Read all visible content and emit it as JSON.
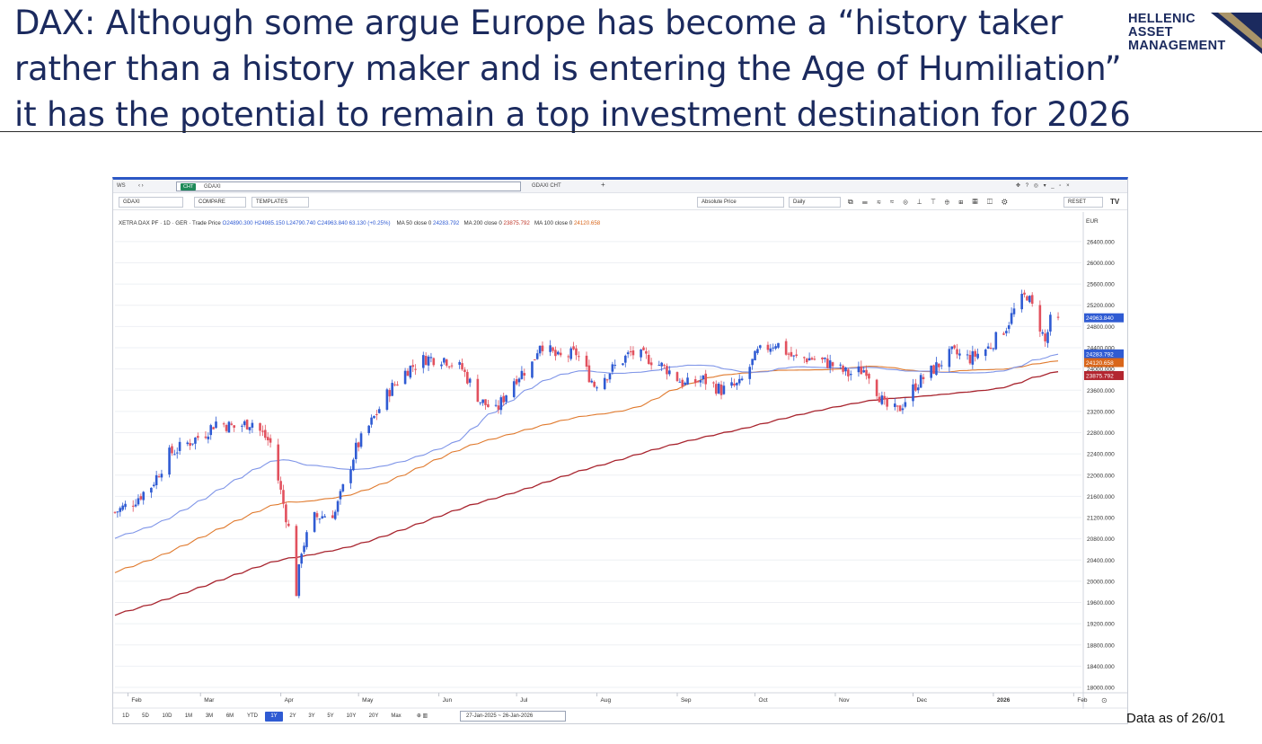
{
  "header": {
    "line1": "DAX: Although some argue Europe has become a “history taker",
    "line2": "rather than a history maker and is entering the Age of Humiliation”",
    "line3": "it has the potential to remain a top investment destination for 2026"
  },
  "logo": {
    "line1": "HELLENIC",
    "line2": "ASSET",
    "line3": "MANAGEMENT"
  },
  "terminal": {
    "tab_ws": "WS",
    "tab_nav": "‹ ›",
    "cmd_chip": "CHT",
    "cmd_text": "GDAXI",
    "tab_name": "GDAXI CHT",
    "tab_add": "+",
    "window_icons": "✥ ? ◎ ▾  _ ▫ ×",
    "ticker_input": "GDAXI",
    "compare_label": "COMPARE",
    "templates_label": "TEMPLATES",
    "price_mode": "Absolute Price",
    "periodicity": "Daily",
    "reset_label": "RESET",
    "tv_logo": "TV",
    "legend": {
      "title": "XETRA DAX PF · 1D · GER · Trade Price",
      "ohlc": "O24890.300 H24985.150 L24790.740 C24963.840 63.130 (+0.25%)",
      "ma50_label": "MA 50 close 0",
      "ma50_value": "24283.792",
      "ma200_label": "MA 200 close 0",
      "ma200_value": "23875.792",
      "ma100_label": "MA 100 close 0",
      "ma100_value": "24120.658"
    },
    "ranges": [
      "1D",
      "5D",
      "10D",
      "1M",
      "3M",
      "6M",
      "YTD",
      "1Y",
      "2Y",
      "3Y",
      "5Y",
      "10Y",
      "20Y",
      "Max"
    ],
    "active_range": "1Y",
    "date_range": "27-Jan-2025 ~ 26-Jan-2026"
  },
  "chart_data": {
    "type": "candlestick",
    "currency": "EUR",
    "y_axis_ticks": [
      18000,
      18400,
      18800,
      19200,
      19600,
      20000,
      20400,
      20800,
      21200,
      21600,
      22000,
      22400,
      22800,
      23200,
      23600,
      24000,
      24400,
      24800,
      25200,
      25600,
      26000,
      26400
    ],
    "ylim": [
      17950,
      26550
    ],
    "x_axis_labels": [
      "Feb",
      "Mar",
      "Apr",
      "May",
      "Jun",
      "Jul",
      "Aug",
      "Sep",
      "Oct",
      "Nov",
      "Dec",
      "2026",
      "Feb"
    ],
    "x_range": [
      "2025-01-27",
      "2026-02-04"
    ],
    "last_price_labels": [
      {
        "name": "Close",
        "value": 24963.84,
        "color": "#2f5bd3"
      },
      {
        "name": "MA 50",
        "value": 24283.792,
        "color": "#2f5bd3"
      },
      {
        "name": "MA 100",
        "value": 24120.658,
        "color": "#d9661a"
      },
      {
        "name": "MA 200",
        "value": 23875.792,
        "color": "#b32630"
      }
    ],
    "colors": {
      "up": "#2f5bd3",
      "down": "#e2515e",
      "ma50": "#7f95e8",
      "ma100": "#e07a2e",
      "ma200": "#a8242e",
      "grid": "#eef0f4"
    },
    "price_path": [
      [
        "2025-01-27",
        21300
      ],
      [
        "2025-02-03",
        21500
      ],
      [
        "2025-02-10",
        21800
      ],
      [
        "2025-02-17",
        22400
      ],
      [
        "2025-02-24",
        22600
      ],
      [
        "2025-03-03",
        22800
      ],
      [
        "2025-03-07",
        23000
      ],
      [
        "2025-03-14",
        22900
      ],
      [
        "2025-03-21",
        23000
      ],
      [
        "2025-03-28",
        22600
      ],
      [
        "2025-04-04",
        21000
      ],
      [
        "2025-04-07",
        19800
      ],
      [
        "2025-04-09",
        20600
      ],
      [
        "2025-04-14",
        21200
      ],
      [
        "2025-04-22",
        21300
      ],
      [
        "2025-04-30",
        22500
      ],
      [
        "2025-05-06",
        23000
      ],
      [
        "2025-05-13",
        23600
      ],
      [
        "2025-05-20",
        24000
      ],
      [
        "2025-05-27",
        24200
      ],
      [
        "2025-06-03",
        24200
      ],
      [
        "2025-06-10",
        24000
      ],
      [
        "2025-06-17",
        23400
      ],
      [
        "2025-06-23",
        23200
      ],
      [
        "2025-06-30",
        23800
      ],
      [
        "2025-07-07",
        24100
      ],
      [
        "2025-07-10",
        24500
      ],
      [
        "2025-07-17",
        24200
      ],
      [
        "2025-07-24",
        24300
      ],
      [
        "2025-07-31",
        23700
      ],
      [
        "2025-08-07",
        24000
      ],
      [
        "2025-08-14",
        24300
      ],
      [
        "2025-08-21",
        24200
      ],
      [
        "2025-08-28",
        24000
      ],
      [
        "2025-09-04",
        23700
      ],
      [
        "2025-09-11",
        23800
      ],
      [
        "2025-09-18",
        23600
      ],
      [
        "2025-09-25",
        23700
      ],
      [
        "2025-10-02",
        24300
      ],
      [
        "2025-10-09",
        24500
      ],
      [
        "2025-10-16",
        24200
      ],
      [
        "2025-10-23",
        24200
      ],
      [
        "2025-10-30",
        24100
      ],
      [
        "2025-11-06",
        23900
      ],
      [
        "2025-11-13",
        24000
      ],
      [
        "2025-11-20",
        23300
      ],
      [
        "2025-11-25",
        23200
      ],
      [
        "2025-12-02",
        23700
      ],
      [
        "2025-12-09",
        24000
      ],
      [
        "2025-12-16",
        24300
      ],
      [
        "2025-12-23",
        24200
      ],
      [
        "2025-12-30",
        24400
      ],
      [
        "2026-01-06",
        24800
      ],
      [
        "2026-01-10",
        25200
      ],
      [
        "2026-01-14",
        25400
      ],
      [
        "2026-01-19",
        24800
      ],
      [
        "2026-01-21",
        24500
      ],
      [
        "2026-01-23",
        24900
      ],
      [
        "2026-01-26",
        24964
      ]
    ]
  },
  "footnote": "Data as of 26/01"
}
